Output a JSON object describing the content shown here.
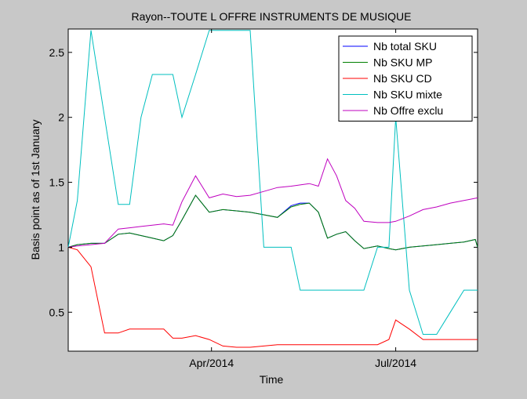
{
  "chart_data": {
    "type": "line",
    "title": "Rayon--TOUTE L OFFRE INSTRUMENTS DE MUSIQUE",
    "xlabel": "Time",
    "ylabel": "Basis point as of 1st January",
    "x_axis": {
      "range": [
        0,
        180
      ],
      "ticks": [
        {
          "pos": 63,
          "label": "Apr/2014"
        },
        {
          "pos": 144,
          "label": "Jul/2014"
        }
      ]
    },
    "y_axis": {
      "range": [
        0.2,
        2.68
      ],
      "ticks": [
        0.5,
        1,
        1.5,
        2,
        2.5
      ],
      "tick_labels": [
        "0.5",
        "1",
        "1.5",
        "2",
        "2.5"
      ]
    },
    "grid": false,
    "legend_position": "top-right",
    "series": [
      {
        "name": "Nb total SKU",
        "color": "#0000ff",
        "x": [
          0,
          4,
          10,
          16,
          22,
          27,
          32,
          37,
          42,
          46,
          50,
          56,
          62,
          68,
          74,
          80,
          86,
          92,
          98,
          100,
          102,
          106,
          110,
          114,
          118,
          122,
          126,
          130,
          136,
          141,
          144,
          150,
          156,
          162,
          168,
          174,
          179,
          180
        ],
        "y": [
          1.0,
          1.02,
          1.03,
          1.03,
          1.1,
          1.11,
          1.09,
          1.07,
          1.05,
          1.09,
          1.21,
          1.4,
          1.27,
          1.29,
          1.28,
          1.27,
          1.25,
          1.23,
          1.32,
          1.33,
          1.34,
          1.34,
          1.27,
          1.07,
          1.1,
          1.12,
          1.05,
          0.99,
          1.01,
          0.99,
          0.98,
          1.0,
          1.01,
          1.02,
          1.03,
          1.04,
          1.06,
          1.0
        ]
      },
      {
        "name": "Nb SKU MP",
        "color": "#008000",
        "x": [
          0,
          4,
          10,
          16,
          22,
          27,
          32,
          37,
          42,
          46,
          50,
          56,
          62,
          68,
          74,
          80,
          86,
          92,
          98,
          102,
          106,
          110,
          114,
          118,
          122,
          126,
          130,
          136,
          141,
          144,
          150,
          156,
          162,
          168,
          174,
          179,
          180
        ],
        "y": [
          1.0,
          1.02,
          1.03,
          1.03,
          1.1,
          1.11,
          1.09,
          1.07,
          1.05,
          1.09,
          1.21,
          1.4,
          1.27,
          1.29,
          1.28,
          1.27,
          1.25,
          1.23,
          1.31,
          1.33,
          1.34,
          1.27,
          1.07,
          1.1,
          1.12,
          1.05,
          0.99,
          1.01,
          0.99,
          0.98,
          1.0,
          1.01,
          1.02,
          1.03,
          1.04,
          1.06,
          1.0
        ]
      },
      {
        "name": "Nb SKU CD",
        "color": "#ff0000",
        "x": [
          0,
          4,
          10,
          16,
          22,
          27,
          32,
          37,
          42,
          46,
          50,
          56,
          62,
          68,
          74,
          80,
          86,
          92,
          98,
          102,
          110,
          114,
          118,
          122,
          126,
          130,
          136,
          141,
          144,
          150,
          156,
          162,
          168,
          174,
          180
        ],
        "y": [
          1.0,
          0.98,
          0.85,
          0.34,
          0.34,
          0.37,
          0.37,
          0.37,
          0.37,
          0.3,
          0.3,
          0.32,
          0.29,
          0.24,
          0.23,
          0.23,
          0.24,
          0.25,
          0.25,
          0.25,
          0.25,
          0.25,
          0.25,
          0.25,
          0.25,
          0.25,
          0.25,
          0.29,
          0.44,
          0.37,
          0.29,
          0.29,
          0.29,
          0.29,
          0.29
        ]
      },
      {
        "name": "Nb SKU mixte",
        "color": "#00bfbf",
        "x": [
          0,
          4,
          10,
          16,
          22,
          27,
          32,
          37,
          42,
          46,
          50,
          56,
          62,
          68,
          74,
          80,
          86,
          92,
          98,
          102,
          110,
          114,
          118,
          122,
          126,
          130,
          136,
          141,
          144,
          150,
          156,
          162,
          168,
          174,
          180
        ],
        "y": [
          1.0,
          1.36,
          2.67,
          2.0,
          1.33,
          1.33,
          2.0,
          2.33,
          2.33,
          2.33,
          2.0,
          2.33,
          2.67,
          2.67,
          2.67,
          2.67,
          1.0,
          1.0,
          1.0,
          0.67,
          0.67,
          0.67,
          0.67,
          0.67,
          0.67,
          0.67,
          1.0,
          1.0,
          2.0,
          0.67,
          0.33,
          0.33,
          0.5,
          0.67,
          0.67
        ]
      },
      {
        "name": "Nb Offre exclu",
        "color": "#bf00bf",
        "x": [
          0,
          4,
          10,
          16,
          22,
          27,
          32,
          37,
          42,
          46,
          50,
          56,
          62,
          68,
          74,
          80,
          86,
          92,
          98,
          102,
          106,
          110,
          114,
          118,
          122,
          126,
          130,
          136,
          141,
          144,
          150,
          156,
          162,
          168,
          174,
          180
        ],
        "y": [
          1.0,
          1.01,
          1.02,
          1.03,
          1.14,
          1.15,
          1.16,
          1.17,
          1.18,
          1.17,
          1.35,
          1.55,
          1.38,
          1.41,
          1.39,
          1.4,
          1.43,
          1.46,
          1.47,
          1.48,
          1.49,
          1.47,
          1.68,
          1.55,
          1.36,
          1.3,
          1.2,
          1.19,
          1.19,
          1.2,
          1.24,
          1.29,
          1.31,
          1.34,
          1.36,
          1.38
        ]
      }
    ]
  }
}
